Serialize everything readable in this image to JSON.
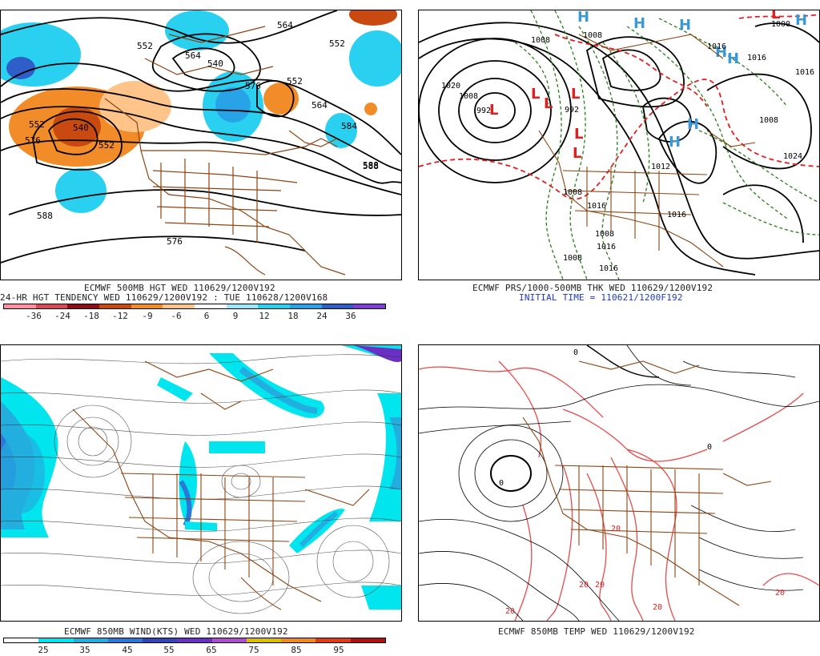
{
  "panels": {
    "tl": {
      "caption1": "ECMWF 500MB HGT WED 110629/1200V192",
      "caption2": "24-HR HGT TENDENCY WED 110629/1200V192 : TUE 110628/1200V168",
      "colorbar_labels": [
        "-36",
        "-24",
        "-18",
        "-12",
        "-9",
        "-6",
        "6",
        "9",
        "12",
        "18",
        "24",
        "36"
      ],
      "colorbar_colors": [
        "#ff8fa0",
        "#d94a56",
        "#8b0f14",
        "#c84a10",
        "#f28c28",
        "#ffc48a",
        "#ffffff",
        "#9de6ff",
        "#2ad0f0",
        "#29a3e8",
        "#2f5ec8",
        "#7f3fd6"
      ],
      "contour_labels": [
        "552",
        "564",
        "552",
        "564",
        "540",
        "552",
        "576",
        "564",
        "540",
        "552",
        "552",
        "576",
        "584",
        "588",
        "588",
        "576",
        "588"
      ]
    },
    "tr": {
      "caption1": "ECMWF PRS/1000-500MB THK WED 110629/1200V192",
      "caption2": "INITIAL TIME = 110621/1200F192",
      "highs": [
        "H",
        "H",
        "H",
        "H",
        "H",
        "H",
        "H",
        "H"
      ],
      "lows": [
        "L",
        "L",
        "L",
        "L",
        "L",
        "L",
        "L"
      ],
      "isobar_labels": [
        "1020",
        "1008",
        "1008",
        "1008",
        "992",
        "992",
        "1016",
        "1016",
        "1016",
        "1008",
        "1024",
        "1008",
        "1016",
        "1008",
        "1016",
        "1016",
        "1008",
        "1016",
        "1012",
        "1000"
      ]
    },
    "bl": {
      "caption1": "ECMWF 850MB WIND(KTS) WED 110629/1200V192",
      "colorbar_labels": [
        "25",
        "35",
        "45",
        "55",
        "65",
        "75",
        "85",
        "95"
      ],
      "colorbar_colors": [
        "#ffffff",
        "#00e5ee",
        "#23aee0",
        "#2a78d8",
        "#3046b8",
        "#6b2fc4",
        "#b24bcf",
        "#d8c000",
        "#f08a1d",
        "#e23a14",
        "#b01010"
      ]
    },
    "br": {
      "caption1": "ECMWF 850MB TEMP WED 110629/1200V192",
      "contour_labels": [
        "0",
        "0",
        "0",
        "20",
        "20",
        "20",
        "20",
        "20",
        "20"
      ]
    }
  }
}
